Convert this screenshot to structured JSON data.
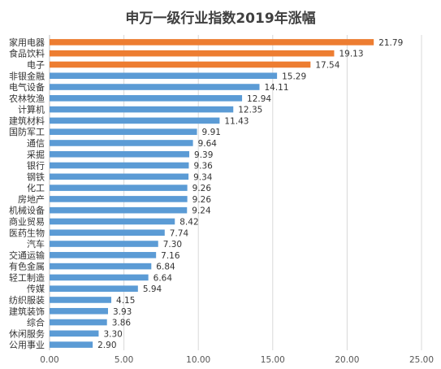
{
  "chart_data": {
    "type": "bar",
    "orientation": "horizontal",
    "title": "申万一级行业指数2019年涨幅",
    "xlabel": "",
    "ylabel": "",
    "xlim": [
      0,
      25
    ],
    "x_ticks": [
      "0.00",
      "5.00",
      "10.00",
      "15.00",
      "20.00",
      "25.00"
    ],
    "grid": true,
    "legend": "none",
    "categories": [
      "家用电器",
      "食品饮料",
      "电子",
      "非银金融",
      "电气设备",
      "农林牧渔",
      "计算机",
      "建筑材料",
      "国防军工",
      "通信",
      "采掘",
      "银行",
      "钢铁",
      "化工",
      "房地产",
      "机械设备",
      "商业贸易",
      "医药生物",
      "汽车",
      "交通运输",
      "有色金属",
      "轻工制造",
      "传媒",
      "纺织服装",
      "建筑装饰",
      "综合",
      "休闲服务",
      "公用事业"
    ],
    "values": [
      21.79,
      19.13,
      17.54,
      15.29,
      14.11,
      12.94,
      12.35,
      11.43,
      9.91,
      9.64,
      9.39,
      9.36,
      9.34,
      9.26,
      9.26,
      9.24,
      8.42,
      7.74,
      7.3,
      7.16,
      6.84,
      6.64,
      5.94,
      4.15,
      3.93,
      3.86,
      3.3,
      2.9
    ],
    "value_labels": [
      "21.79",
      "19.13",
      "17.54",
      "15.29",
      "14.11",
      "12.94",
      "12.35",
      "11.43",
      "9.91",
      "9.64",
      "9.39",
      "9.36",
      "9.34",
      "9.26",
      "9.26",
      "9.24",
      "8.42",
      "7.74",
      "7.30",
      "7.16",
      "6.84",
      "6.64",
      "5.94",
      "4.15",
      "3.93",
      "3.86",
      "3.30",
      "2.90"
    ],
    "highlight_count": 3,
    "colors": {
      "highlight": "#ED7D31",
      "default": "#5B9BD5",
      "grid": "#D9D9D9",
      "axis": "#BFBFBF"
    }
  }
}
